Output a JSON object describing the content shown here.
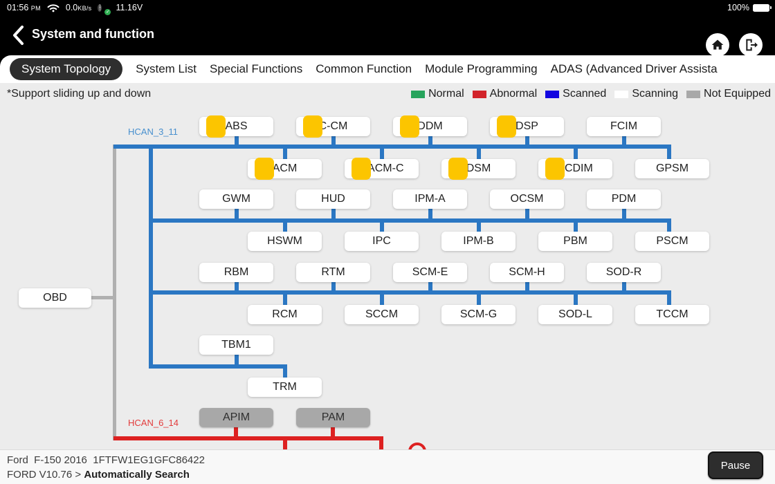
{
  "status_bar": {
    "time": "01:56",
    "time_suffix": "PM",
    "net_speed": "0.0",
    "net_speed_unit": "KB/s",
    "voltage": "11.16V",
    "battery_percent": "100%"
  },
  "header": {
    "title": "System and function"
  },
  "tabs": [
    {
      "label": "System Topology",
      "selected": true
    },
    {
      "label": "System List",
      "selected": false
    },
    {
      "label": "Special Functions",
      "selected": false
    },
    {
      "label": "Common Function",
      "selected": false
    },
    {
      "label": "Module Programming",
      "selected": false
    },
    {
      "label": "ADAS (Advanced Driver Assista",
      "selected": false
    }
  ],
  "legend": {
    "note": "*Support sliding up and down",
    "items": [
      {
        "label": "Normal",
        "color": "#27a45c"
      },
      {
        "label": "Abnormal",
        "color": "#d2232a"
      },
      {
        "label": "Scanned",
        "color": "#1205e0"
      },
      {
        "label": "Scanning",
        "color": "#ffffff"
      },
      {
        "label": "Not Equipped",
        "color": "#a8a8a8"
      }
    ]
  },
  "topology": {
    "obd_label": "OBD",
    "hcan_top_label": "HCAN_3_11",
    "hcan_bottom_label": "HCAN_6_14",
    "rows": [
      [
        {
          "label": "ABS",
          "status": "active"
        },
        {
          "label": "C-CM",
          "status": "active"
        },
        {
          "label": "DDM",
          "status": "active"
        },
        {
          "label": "DSP",
          "status": "active"
        },
        {
          "label": "FCIM",
          "status": "scanning"
        }
      ],
      [
        {
          "label": "ACM",
          "status": "active"
        },
        {
          "label": "DACM-C",
          "status": "active"
        },
        {
          "label": "DSM",
          "status": "active"
        },
        {
          "label": "FCDIM",
          "status": "active"
        },
        {
          "label": "GPSM",
          "status": "scanning"
        }
      ],
      [
        {
          "label": "GWM",
          "status": "scanning"
        },
        {
          "label": "HUD",
          "status": "scanning"
        },
        {
          "label": "IPM-A",
          "status": "scanning"
        },
        {
          "label": "OCSM",
          "status": "scanning"
        },
        {
          "label": "PDM",
          "status": "scanning"
        }
      ],
      [
        {
          "label": "HSWM",
          "status": "scanning"
        },
        {
          "label": "IPC",
          "status": "scanning"
        },
        {
          "label": "IPM-B",
          "status": "scanning"
        },
        {
          "label": "PBM",
          "status": "scanning"
        },
        {
          "label": "PSCM",
          "status": "scanning"
        }
      ],
      [
        {
          "label": "RBM",
          "status": "scanning"
        },
        {
          "label": "RTM",
          "status": "scanning"
        },
        {
          "label": "SCM-E",
          "status": "scanning"
        },
        {
          "label": "SCM-H",
          "status": "scanning"
        },
        {
          "label": "SOD-R",
          "status": "scanning"
        }
      ],
      [
        {
          "label": "RCM",
          "status": "scanning"
        },
        {
          "label": "SCCM",
          "status": "scanning"
        },
        {
          "label": "SCM-G",
          "status": "scanning"
        },
        {
          "label": "SOD-L",
          "status": "scanning"
        },
        {
          "label": "TCCM",
          "status": "scanning"
        }
      ],
      [
        {
          "label": "TBM1",
          "status": "scanning"
        }
      ],
      [
        {
          "label": "TRM",
          "status": "scanning"
        }
      ],
      [
        {
          "label": "APIM",
          "status": "not_equipped"
        },
        {
          "label": "PAM",
          "status": "not_equipped"
        }
      ]
    ]
  },
  "footer": {
    "vehicle_line": "Ford  F-150 2016  1FTFW1EG1GFC86422",
    "path_prefix": "FORD V10.76 > ",
    "path_current": "Automatically Search",
    "pause_label": "Pause"
  },
  "colors": {
    "bus_blue": "#2b77c3",
    "bus_red": "#dd2121",
    "trunk_gray": "#b0b0b0",
    "active_yellow": "#fcc500"
  }
}
